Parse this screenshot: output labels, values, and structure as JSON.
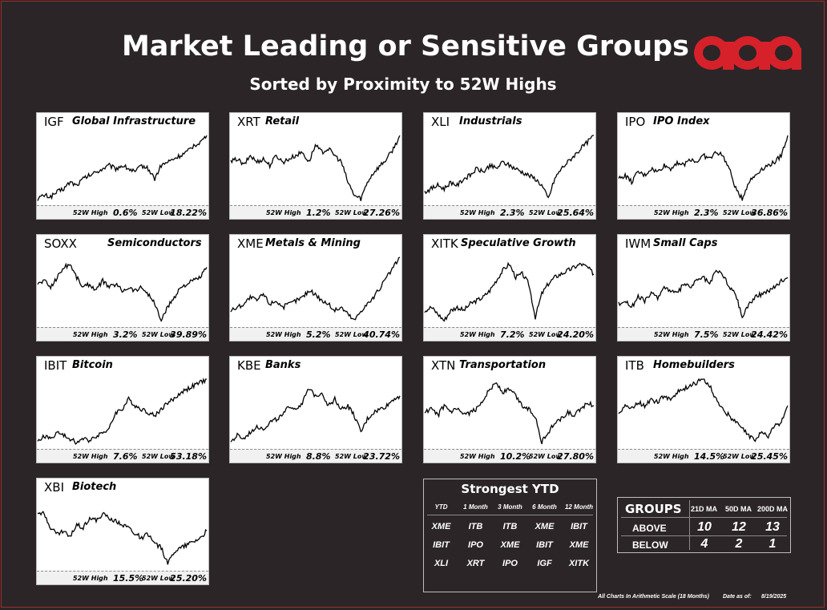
{
  "header": {
    "title": "Market Leading or Sensitive Groups",
    "subtitle": "Sorted by Proximity to 52W Highs"
  },
  "brand": {
    "logo_icon": "aoa-logo",
    "accent": "#d7212a",
    "background": "#2b2527"
  },
  "labels": {
    "high": "52W High",
    "low": "52W Low"
  },
  "chart_data": [
    {
      "type": "line",
      "ticker": "IGF",
      "name": "Global Infrastructure",
      "high": "0.6%",
      "low": "18.22%",
      "y": [
        0.05,
        0.1,
        0.08,
        0.15,
        0.2,
        0.3,
        0.25,
        0.35,
        0.4,
        0.45,
        0.5,
        0.55,
        0.5,
        0.55,
        0.5,
        0.45,
        0.55,
        0.5,
        0.35,
        0.55,
        0.6,
        0.65,
        0.7,
        0.75,
        0.85,
        0.9,
        1.0
      ]
    },
    {
      "type": "line",
      "ticker": "XRT",
      "name": "Retail",
      "high": "1.2%",
      "low": "27.26%",
      "y": [
        0.6,
        0.65,
        0.55,
        0.7,
        0.6,
        0.65,
        0.55,
        0.7,
        0.6,
        0.65,
        0.7,
        0.75,
        0.6,
        0.85,
        0.75,
        0.8,
        0.7,
        0.6,
        0.3,
        0.1,
        0.05,
        0.3,
        0.45,
        0.55,
        0.65,
        0.8,
        1.0
      ]
    },
    {
      "type": "line",
      "ticker": "XLI",
      "name": "Industrials",
      "high": "2.3%",
      "low": "25.64%",
      "y": [
        0.15,
        0.2,
        0.25,
        0.2,
        0.3,
        0.25,
        0.35,
        0.4,
        0.5,
        0.45,
        0.55,
        0.5,
        0.6,
        0.55,
        0.5,
        0.45,
        0.4,
        0.35,
        0.25,
        0.05,
        0.35,
        0.5,
        0.6,
        0.7,
        0.8,
        0.9,
        1.0
      ]
    },
    {
      "type": "line",
      "ticker": "IPO",
      "name": "IPO Index",
      "high": "2.3%",
      "low": "36.86%",
      "y": [
        0.35,
        0.4,
        0.3,
        0.45,
        0.4,
        0.5,
        0.45,
        0.55,
        0.5,
        0.6,
        0.55,
        0.65,
        0.6,
        0.7,
        0.65,
        0.75,
        0.7,
        0.5,
        0.2,
        0.05,
        0.3,
        0.4,
        0.5,
        0.55,
        0.6,
        0.7,
        1.0
      ]
    },
    {
      "type": "line",
      "ticker": "SOXX",
      "name": "Semiconductors",
      "high": "3.2%",
      "low": "39.89%",
      "y": [
        0.6,
        0.65,
        0.55,
        0.7,
        0.85,
        0.9,
        0.7,
        0.55,
        0.6,
        0.5,
        0.65,
        0.55,
        0.6,
        0.5,
        0.55,
        0.5,
        0.55,
        0.45,
        0.3,
        0.05,
        0.25,
        0.4,
        0.55,
        0.6,
        0.65,
        0.7,
        0.85
      ]
    },
    {
      "type": "line",
      "ticker": "XME",
      "name": "Metals & Mining",
      "high": "5.2%",
      "low": "40.74%",
      "y": [
        0.2,
        0.25,
        0.3,
        0.4,
        0.35,
        0.45,
        0.3,
        0.35,
        0.25,
        0.3,
        0.35,
        0.4,
        0.5,
        0.45,
        0.35,
        0.3,
        0.2,
        0.25,
        0.15,
        0.05,
        0.2,
        0.3,
        0.4,
        0.55,
        0.7,
        0.85,
        1.0
      ]
    },
    {
      "type": "line",
      "ticker": "XITK",
      "name": "Speculative Growth",
      "high": "7.2%",
      "low": "24.20%",
      "y": [
        0.2,
        0.25,
        0.15,
        0.05,
        0.2,
        0.25,
        0.2,
        0.3,
        0.35,
        0.4,
        0.5,
        0.65,
        0.8,
        0.9,
        0.7,
        0.75,
        0.6,
        0.1,
        0.45,
        0.6,
        0.7,
        0.75,
        0.8,
        0.85,
        0.9,
        0.85,
        0.75
      ]
    },
    {
      "type": "line",
      "ticker": "IWM",
      "name": "Small Caps",
      "high": "7.5%",
      "low": "24.42%",
      "y": [
        0.3,
        0.35,
        0.25,
        0.4,
        0.35,
        0.45,
        0.4,
        0.55,
        0.5,
        0.45,
        0.6,
        0.55,
        0.65,
        0.7,
        0.6,
        0.8,
        0.75,
        0.55,
        0.45,
        0.1,
        0.3,
        0.4,
        0.45,
        0.5,
        0.55,
        0.65,
        0.7
      ]
    },
    {
      "type": "line",
      "ticker": "IBIT",
      "name": "Bitcoin",
      "high": "7.6%",
      "low": "53.18%",
      "y": [
        0.05,
        0.15,
        0.1,
        0.2,
        0.15,
        0.1,
        0.05,
        0.1,
        0.08,
        0.15,
        0.2,
        0.25,
        0.5,
        0.55,
        0.7,
        0.6,
        0.55,
        0.5,
        0.45,
        0.55,
        0.65,
        0.7,
        0.8,
        0.85,
        0.9,
        0.95,
        1.0
      ]
    },
    {
      "type": "line",
      "ticker": "KBE",
      "name": "Banks",
      "high": "8.8%",
      "low": "23.72%",
      "y": [
        0.05,
        0.15,
        0.1,
        0.2,
        0.3,
        0.25,
        0.35,
        0.4,
        0.45,
        0.6,
        0.55,
        0.65,
        0.85,
        0.75,
        0.8,
        0.6,
        0.7,
        0.55,
        0.6,
        0.45,
        0.2,
        0.4,
        0.5,
        0.55,
        0.6,
        0.7,
        0.75
      ]
    },
    {
      "type": "line",
      "ticker": "XTN",
      "name": "Transportation",
      "high": "10.2%",
      "low": "27.80%",
      "y": [
        0.5,
        0.55,
        0.45,
        0.6,
        0.5,
        0.55,
        0.45,
        0.5,
        0.55,
        0.7,
        0.85,
        0.95,
        0.8,
        0.85,
        0.75,
        0.6,
        0.55,
        0.45,
        0.05,
        0.2,
        0.35,
        0.4,
        0.5,
        0.45,
        0.55,
        0.65,
        0.6
      ]
    },
    {
      "type": "line",
      "ticker": "ITB",
      "name": "Homebuilders",
      "high": "14.5%",
      "low": "25.45%",
      "y": [
        0.5,
        0.6,
        0.55,
        0.65,
        0.6,
        0.7,
        0.65,
        0.75,
        0.7,
        0.8,
        0.85,
        0.9,
        0.95,
        1.0,
        0.9,
        0.7,
        0.55,
        0.45,
        0.35,
        0.25,
        0.15,
        0.1,
        0.2,
        0.15,
        0.3,
        0.35,
        0.6
      ]
    },
    {
      "type": "line",
      "ticker": "XBI",
      "name": "Biotech",
      "high": "15.5%",
      "low": "25.20%",
      "y": [
        0.85,
        0.8,
        0.6,
        0.5,
        0.55,
        0.45,
        0.65,
        0.6,
        0.75,
        0.7,
        0.8,
        0.75,
        0.7,
        0.65,
        0.6,
        0.5,
        0.45,
        0.5,
        0.35,
        0.3,
        0.05,
        0.25,
        0.3,
        0.35,
        0.4,
        0.45,
        0.55
      ]
    }
  ],
  "strongest": {
    "title": "Strongest YTD",
    "columns": [
      "YTD",
      "1 Month",
      "3 Month",
      "6 Month",
      "12 Month"
    ],
    "rows": [
      [
        "XME",
        "ITB",
        "ITB",
        "XME",
        "IBIT"
      ],
      [
        "IBIT",
        "IPO",
        "XME",
        "IBIT",
        "XME"
      ],
      [
        "XLI",
        "XRT",
        "IPO",
        "IGF",
        "XITK"
      ]
    ]
  },
  "groups": {
    "title": "GROUPS",
    "cols": [
      "21D MA",
      "50D MA",
      "200D MA"
    ],
    "rows": [
      {
        "label": "ABOVE",
        "values": [
          "10",
          "12",
          "13"
        ]
      },
      {
        "label": "BELOW",
        "values": [
          "4",
          "2",
          "1"
        ]
      }
    ]
  },
  "footer": {
    "note": "All Charts In Arithmetic Scale (18 Months)",
    "date_label": "Date as of:",
    "date": "8/19/2025"
  }
}
